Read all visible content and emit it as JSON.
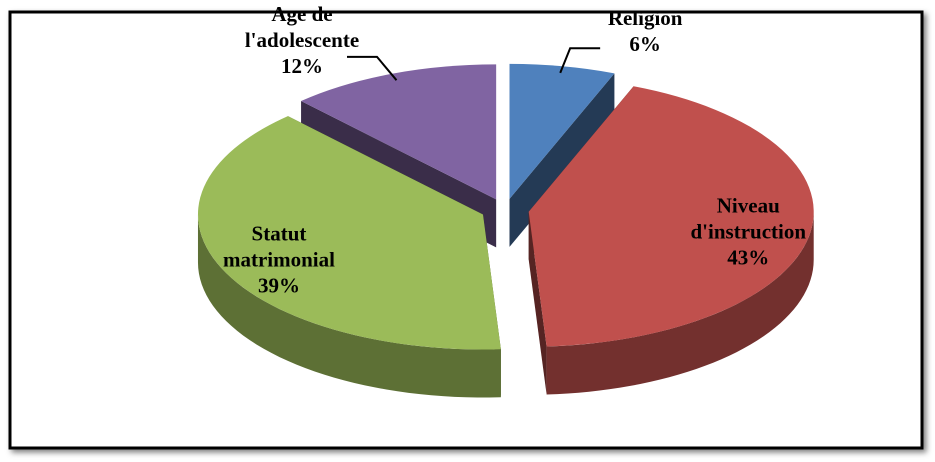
{
  "chart_data": {
    "type": "pie3d",
    "categories": [
      [
        "Religion"
      ],
      [
        "Niveau",
        "d'instruction"
      ],
      [
        "Statut",
        "matrimonial"
      ],
      [
        "Age de",
        "l'adolescente"
      ]
    ],
    "values": [
      6,
      43,
      39,
      12
    ],
    "value_labels": [
      "6%",
      "43%",
      "39%",
      "12%"
    ],
    "colors": [
      "#4f81bd",
      "#c0504d",
      "#9bbb59",
      "#8064a2"
    ]
  }
}
